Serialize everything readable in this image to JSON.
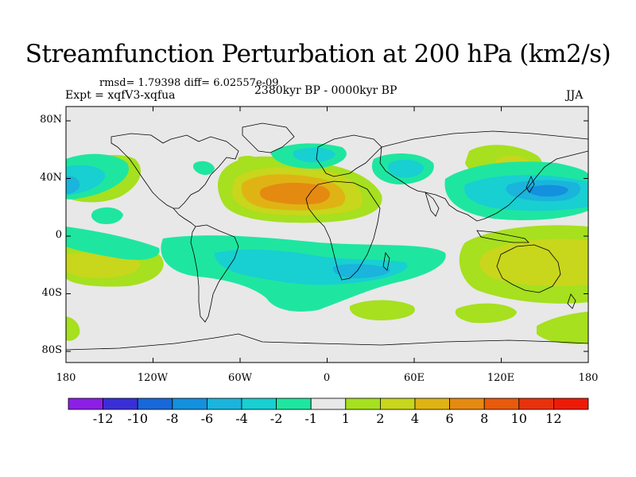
{
  "title": "Streamfunction Perturbation at 200 hPa (km2/s)",
  "stats_text": "rmsd= 1.79398 diff= 6.02557e-09",
  "experiment": "Expt = xqfV3-xqfua",
  "period": "2380kyr BP - 0000kyr BP",
  "season": "JJA",
  "lat_labels": [
    "80N",
    "40N",
    "0",
    "40S",
    "80S"
  ],
  "lon_labels": [
    "180",
    "120W",
    "60W",
    "0",
    "60E",
    "120E",
    "180"
  ],
  "colorbar": {
    "labels": [
      "-12",
      "-10",
      "-8",
      "-6",
      "-4",
      "-2",
      "-1",
      "1",
      "2",
      "4",
      "6",
      "8",
      "10",
      "12"
    ],
    "colors": [
      "#8c1fe6",
      "#3a2fd6",
      "#1868d9",
      "#1390de",
      "#1ab4dc",
      "#18cfd2",
      "#1ee6a0",
      "#e8e8e8",
      "#a6e01f",
      "#c8d61c",
      "#e0b314",
      "#e58a10",
      "#e85a0c",
      "#e8320c",
      "#ee1a08"
    ]
  },
  "palette": {
    "land": "#e8e8e8",
    "pos1": "#a6e01f",
    "pos2": "#c8d61c",
    "pos4": "#e0b314",
    "pos6": "#e58a10",
    "neg1": "#1ee6a0",
    "neg2": "#18cfd2",
    "neg4": "#1ab4dc",
    "neg6": "#1390de"
  }
}
